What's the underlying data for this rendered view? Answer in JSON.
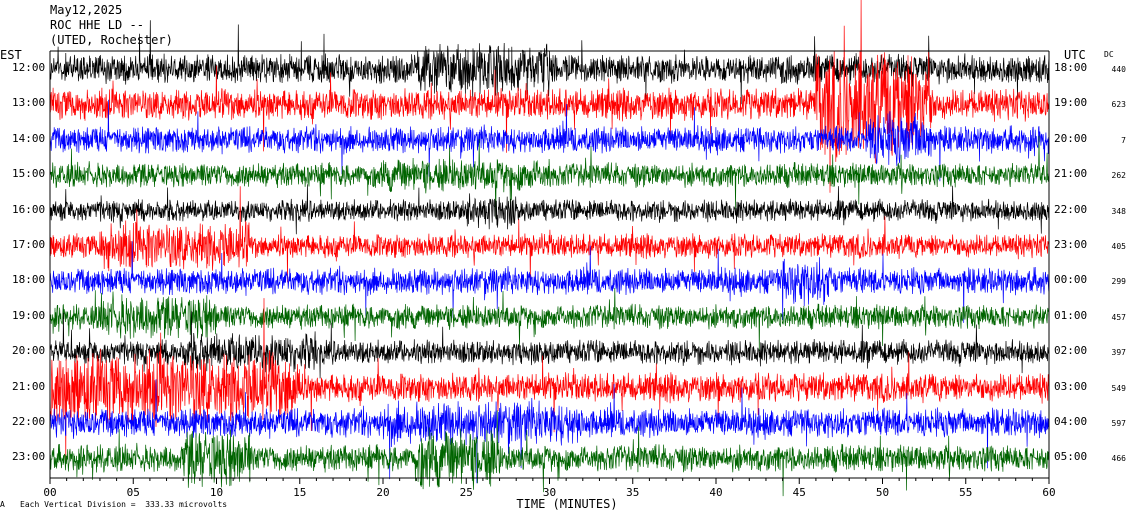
{
  "header": {
    "date": "May12,2025",
    "station": "ROC HHE LD --",
    "location": "(UTED, Rochester)"
  },
  "labels": {
    "left_tz": "EST",
    "right_tz": "UTC",
    "dc": "DC",
    "xlabel": "TIME (MINUTES)",
    "footnote": "Each Vertical Division =  333.33 microvolts",
    "corner_mark": "A"
  },
  "colors": {
    "palette": [
      "#000000",
      "#ff0000",
      "#0000ff",
      "#006400"
    ]
  },
  "chart_data": {
    "type": "line",
    "title": "May12,2025 ROC HHE LD --",
    "xlabel": "TIME (MINUTES)",
    "xlim": [
      0,
      60
    ],
    "x_ticks": [
      "00",
      "05",
      "10",
      "15",
      "20",
      "25",
      "30",
      "35",
      "40",
      "45",
      "50",
      "55",
      "60"
    ],
    "rows": [
      {
        "est": "12:00",
        "utc": "18:00",
        "dc": "440",
        "color": "#000000",
        "amplitude": 1.2,
        "bursts": [
          [
            22,
            30,
            1.8
          ]
        ]
      },
      {
        "est": "13:00",
        "utc": "19:00",
        "dc": "623",
        "color": "#ff0000",
        "amplitude": 1.3,
        "bursts": [
          [
            46,
            53,
            3.5
          ]
        ]
      },
      {
        "est": "14:00",
        "utc": "20:00",
        "dc": "7",
        "color": "#0000ff",
        "amplitude": 1.1,
        "bursts": [
          [
            49,
            53,
            2.0
          ]
        ]
      },
      {
        "est": "15:00",
        "utc": "21:00",
        "dc": "262",
        "color": "#006400",
        "amplitude": 1.0,
        "bursts": [
          [
            20,
            30,
            1.4
          ]
        ]
      },
      {
        "est": "16:00",
        "utc": "22:00",
        "dc": "348",
        "color": "#000000",
        "amplitude": 0.9,
        "bursts": [
          [
            25,
            28,
            1.6
          ]
        ]
      },
      {
        "est": "17:00",
        "utc": "23:00",
        "dc": "405",
        "color": "#ff0000",
        "amplitude": 1.0,
        "bursts": [
          [
            3,
            12,
            2.0
          ]
        ]
      },
      {
        "est": "18:00",
        "utc": "00:00",
        "dc": "299",
        "color": "#0000ff",
        "amplitude": 1.1,
        "bursts": [
          [
            44,
            47,
            1.8
          ]
        ]
      },
      {
        "est": "19:00",
        "utc": "01:00",
        "dc": "457",
        "color": "#006400",
        "amplitude": 1.0,
        "bursts": [
          [
            3,
            10,
            1.8
          ]
        ]
      },
      {
        "est": "20:00",
        "utc": "02:00",
        "dc": "397",
        "color": "#000000",
        "amplitude": 1.0,
        "bursts": [
          [
            8,
            16,
            1.6
          ]
        ]
      },
      {
        "est": "21:00",
        "utc": "03:00",
        "dc": "549",
        "color": "#ff0000",
        "amplitude": 1.2,
        "bursts": [
          [
            0,
            15,
            2.5
          ]
        ]
      },
      {
        "est": "22:00",
        "utc": "04:00",
        "dc": "597",
        "color": "#0000ff",
        "amplitude": 1.2,
        "bursts": [
          [
            20,
            32,
            1.5
          ]
        ]
      },
      {
        "est": "23:00",
        "utc": "05:00",
        "dc": "466",
        "color": "#006400",
        "amplitude": 1.1,
        "bursts": [
          [
            8,
            12,
            2.2
          ],
          [
            22,
            27,
            2.2
          ]
        ]
      }
    ]
  }
}
